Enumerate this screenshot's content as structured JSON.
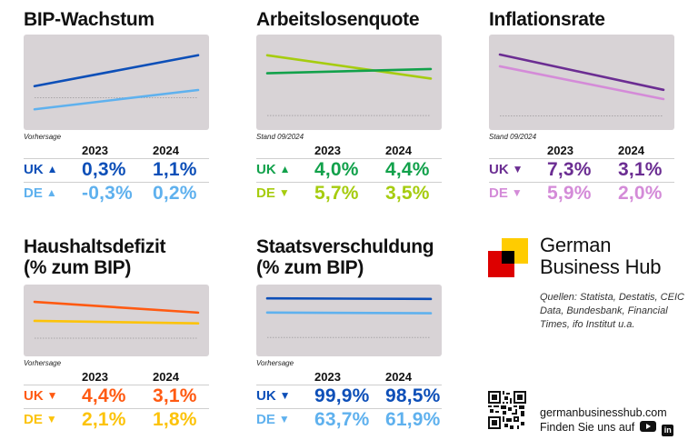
{
  "years": [
    "2023",
    "2024"
  ],
  "panels": [
    {
      "id": "bip",
      "title_lines": [
        "BIP-Wachstum"
      ],
      "note": "Vorhersage",
      "rows": [
        {
          "label": "UK",
          "trend": "up",
          "glyph": "▲",
          "color": "#0d4fb8",
          "values": [
            "0,3%",
            "1,1%"
          ]
        },
        {
          "label": "DE",
          "trend": "up",
          "glyph": "▲",
          "color": "#5fb1ee",
          "values": [
            "-0,3%",
            "0,2%"
          ]
        }
      ]
    },
    {
      "id": "arbeitslosenquote",
      "title_lines": [
        "Arbeitslosenquote"
      ],
      "note": "Stand 09/2024",
      "rows": [
        {
          "label": "UK",
          "trend": "up",
          "glyph": "▲",
          "color": "#12a14b",
          "values": [
            "4,0%",
            "4,4%"
          ]
        },
        {
          "label": "DE",
          "trend": "down",
          "glyph": "▼",
          "color": "#a6cc0f",
          "values": [
            "5,7%",
            "3,5%"
          ]
        }
      ]
    },
    {
      "id": "inflationsrate",
      "title_lines": [
        "Inflationsrate"
      ],
      "note": "Stand 09/2024",
      "rows": [
        {
          "label": "UK",
          "trend": "down",
          "glyph": "▼",
          "color": "#6b2d92",
          "values": [
            "7,3%",
            "3,1%"
          ]
        },
        {
          "label": "DE",
          "trend": "down",
          "glyph": "▼",
          "color": "#d48bd8",
          "values": [
            "5,9%",
            "2,0%"
          ]
        }
      ]
    },
    {
      "id": "haushaltsdefizit",
      "title_lines": [
        "Haushaltsdefizit",
        "(% zum BIP)"
      ],
      "note": "Vorhersage",
      "rows": [
        {
          "label": "UK",
          "trend": "down",
          "glyph": "▼",
          "color": "#ff5a12",
          "values": [
            "4,4%",
            "3,1%"
          ]
        },
        {
          "label": "DE",
          "trend": "down",
          "glyph": "▼",
          "color": "#fcc30a",
          "values": [
            "2,1%",
            "1,8%"
          ]
        }
      ]
    },
    {
      "id": "staatsverschuldung",
      "title_lines": [
        "Staatsverschuldung",
        "(% zum BIP)"
      ],
      "note": "Vorhersage",
      "rows": [
        {
          "label": "UK",
          "trend": "down",
          "glyph": "▼",
          "color": "#0d4fb8",
          "values": [
            "99,9%",
            "98,5%"
          ]
        },
        {
          "label": "DE",
          "trend": "down",
          "glyph": "▼",
          "color": "#5fb1ee",
          "values": [
            "63,7%",
            "61,9%"
          ]
        }
      ]
    }
  ],
  "chart_data": [
    {
      "type": "line",
      "title": "BIP-Wachstum",
      "categories": [
        "2023",
        "2024"
      ],
      "unit": "%",
      "series": [
        {
          "name": "UK",
          "values": [
            0.3,
            1.1
          ],
          "color": "#0d4fb8"
        },
        {
          "name": "DE",
          "values": [
            -0.3,
            0.2
          ],
          "color": "#5fb1ee"
        }
      ],
      "baseline": 0,
      "ylim": [
        -0.6,
        1.4
      ],
      "note": "Vorhersage"
    },
    {
      "type": "line",
      "title": "Arbeitslosenquote",
      "categories": [
        "2023",
        "2024"
      ],
      "unit": "%",
      "series": [
        {
          "name": "UK",
          "values": [
            4.0,
            4.4
          ],
          "color": "#12a14b"
        },
        {
          "name": "DE",
          "values": [
            5.7,
            3.5
          ],
          "color": "#a6cc0f"
        }
      ],
      "baseline": 0,
      "ylim": [
        -0.5,
        6.8
      ],
      "note": "Stand 09/2024"
    },
    {
      "type": "line",
      "title": "Inflationsrate",
      "categories": [
        "2023",
        "2024"
      ],
      "unit": "%",
      "series": [
        {
          "name": "UK",
          "values": [
            7.3,
            3.1
          ],
          "color": "#6b2d92"
        },
        {
          "name": "DE",
          "values": [
            5.9,
            2.0
          ],
          "color": "#d48bd8"
        }
      ],
      "baseline": 0,
      "ylim": [
        -0.6,
        8.6
      ],
      "note": "Stand 09/2024"
    },
    {
      "type": "line",
      "title": "Haushaltsdefizit (% zum BIP)",
      "categories": [
        "2023",
        "2024"
      ],
      "unit": "%",
      "series": [
        {
          "name": "UK",
          "values": [
            4.4,
            3.1
          ],
          "color": "#ff5a12"
        },
        {
          "name": "DE",
          "values": [
            2.1,
            1.8
          ],
          "color": "#fcc30a"
        }
      ],
      "baseline": 0,
      "ylim": [
        -1.1,
        5.4
      ],
      "note": "Vorhersage"
    },
    {
      "type": "line",
      "title": "Staatsverschuldung (% zum BIP)",
      "categories": [
        "2023",
        "2024"
      ],
      "unit": "%",
      "series": [
        {
          "name": "UK",
          "values": [
            99.9,
            98.5
          ],
          "color": "#0d4fb8"
        },
        {
          "name": "DE",
          "values": [
            63.7,
            61.9
          ],
          "color": "#5fb1ee"
        }
      ],
      "baseline": 0,
      "ylim": [
        -25,
        112
      ],
      "note": "Vorhersage"
    }
  ],
  "brand": {
    "name_lines": [
      "German",
      "Business Hub"
    ],
    "logo_colors": {
      "yellow": "#ffcc00",
      "red": "#dd0000",
      "black": "#000000"
    },
    "sources": "Quellen: Statista, Destatis, CEIC Data, Bundesbank, Financial Times, ifo Institut u.a.",
    "website": "germanbusinesshub.com",
    "social_text": "Finden Sie uns auf",
    "social_icons": [
      "youtube-icon",
      "linkedin-icon"
    ],
    "linkedin_glyph": "in"
  }
}
